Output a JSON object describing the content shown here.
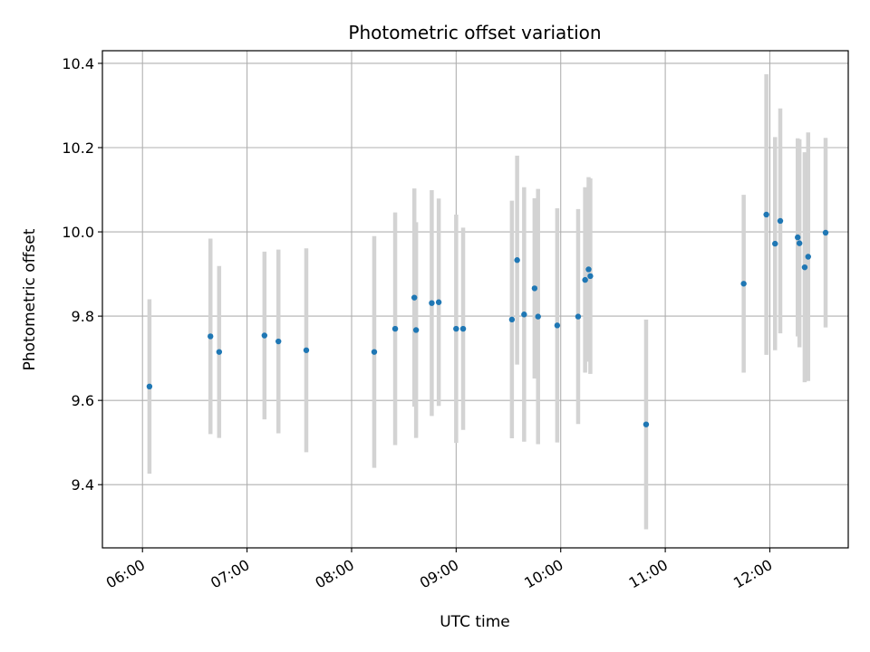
{
  "chart_data": {
    "type": "scatter",
    "title": "Photometric offset variation",
    "xlabel": "UTC time",
    "ylabel": "Photometric offset",
    "x_ticks": [
      "06:00",
      "07:00",
      "08:00",
      "09:00",
      "10:00",
      "11:00",
      "12:00"
    ],
    "y_ticks": [
      "9.4",
      "9.6",
      "9.8",
      "10.0",
      "10.2",
      "10.4"
    ],
    "y_tick_values": [
      9.4,
      9.6,
      9.8,
      10.0,
      10.2,
      10.4
    ],
    "xlim": [
      "05:37",
      "12:45"
    ],
    "ylim": [
      9.25,
      10.43
    ],
    "grid": true,
    "colors": {
      "point": "#1f77b4",
      "errorbar": "#d3d3d3",
      "grid": "#b0b0b0"
    },
    "points": [
      {
        "t": "06:04",
        "y": 9.633,
        "err": 0.207
      },
      {
        "t": "06:39",
        "y": 9.752,
        "err": 0.232
      },
      {
        "t": "06:44",
        "y": 9.715,
        "err": 0.204
      },
      {
        "t": "07:10",
        "y": 9.754,
        "err": 0.199
      },
      {
        "t": "07:18",
        "y": 9.74,
        "err": 0.218
      },
      {
        "t": "07:34",
        "y": 9.719,
        "err": 0.242
      },
      {
        "t": "08:13",
        "y": 9.715,
        "err": 0.275
      },
      {
        "t": "08:25",
        "y": 9.77,
        "err": 0.276
      },
      {
        "t": "08:36",
        "y": 9.844,
        "err": 0.259
      },
      {
        "t": "08:37",
        "y": 9.767,
        "err": 0.256
      },
      {
        "t": "08:46",
        "y": 9.831,
        "err": 0.268
      },
      {
        "t": "08:50",
        "y": 9.833,
        "err": 0.246
      },
      {
        "t": "09:00",
        "y": 9.77,
        "err": 0.271
      },
      {
        "t": "09:04",
        "y": 9.77,
        "err": 0.24
      },
      {
        "t": "09:32",
        "y": 9.792,
        "err": 0.282
      },
      {
        "t": "09:35",
        "y": 9.933,
        "err": 0.248
      },
      {
        "t": "09:39",
        "y": 9.804,
        "err": 0.302
      },
      {
        "t": "09:45",
        "y": 9.866,
        "err": 0.214
      },
      {
        "t": "09:47",
        "y": 9.799,
        "err": 0.303
      },
      {
        "t": "09:58",
        "y": 9.778,
        "err": 0.278
      },
      {
        "t": "10:10",
        "y": 9.799,
        "err": 0.255
      },
      {
        "t": "10:14",
        "y": 9.886,
        "err": 0.22
      },
      {
        "t": "10:16",
        "y": 9.911,
        "err": 0.219
      },
      {
        "t": "10:17",
        "y": 9.895,
        "err": 0.232
      },
      {
        "t": "10:49",
        "y": 9.543,
        "err": 0.249
      },
      {
        "t": "11:45",
        "y": 9.877,
        "err": 0.211
      },
      {
        "t": "11:58",
        "y": 10.041,
        "err": 0.333
      },
      {
        "t": "12:03",
        "y": 9.972,
        "err": 0.253
      },
      {
        "t": "12:06",
        "y": 10.026,
        "err": 0.267
      },
      {
        "t": "12:16",
        "y": 9.987,
        "err": 0.235
      },
      {
        "t": "12:17",
        "y": 9.973,
        "err": 0.247
      },
      {
        "t": "12:20",
        "y": 9.916,
        "err": 0.273
      },
      {
        "t": "12:22",
        "y": 9.941,
        "err": 0.295
      },
      {
        "t": "12:32",
        "y": 9.998,
        "err": 0.225
      }
    ]
  }
}
